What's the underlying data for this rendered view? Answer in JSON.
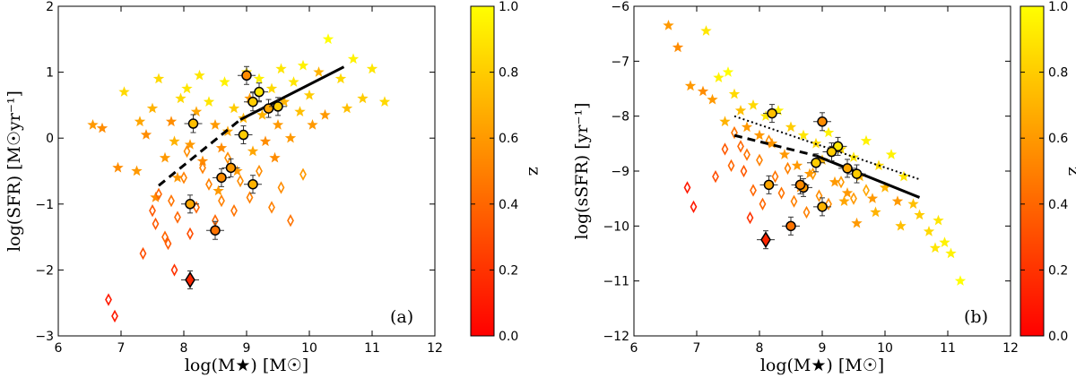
{
  "chart_data": [
    {
      "type": "scatter",
      "panel_label": "(a)",
      "xlabel": "log(M★)  [M☉]",
      "ylabel": "log(SFR)  [M☉yr⁻¹]",
      "xlim": [
        6,
        12
      ],
      "ylim": [
        -3,
        2
      ],
      "xticks": [
        "6",
        "7",
        "8",
        "9",
        "10",
        "11",
        "12"
      ],
      "yticks": [
        "−3",
        "−2",
        "−1",
        "0",
        "1",
        "2"
      ],
      "colorbar": {
        "label": "z",
        "range": [
          0.0,
          1.0
        ],
        "ticks": [
          "0.0",
          "0.2",
          "0.4",
          "0.6",
          "0.8",
          "1.0"
        ]
      },
      "fit_line": {
        "dashed_x": [
          7.6,
          8.9
        ],
        "dashed_y": [
          -0.72,
          0.28
        ],
        "solid_x": [
          8.9,
          10.55
        ],
        "solid_y": [
          0.28,
          1.08
        ]
      },
      "series": [
        {
          "name": "stars",
          "marker": "star",
          "points": [
            [
              6.55,
              0.2,
              0.6
            ],
            [
              6.7,
              0.15,
              0.55
            ],
            [
              7.05,
              0.7,
              0.85
            ],
            [
              7.25,
              -0.5,
              0.6
            ],
            [
              7.4,
              0.05,
              0.55
            ],
            [
              7.5,
              0.45,
              0.7
            ],
            [
              7.6,
              0.9,
              0.85
            ],
            [
              7.7,
              -0.3,
              0.6
            ],
            [
              7.8,
              0.25,
              0.55
            ],
            [
              7.9,
              -0.6,
              0.6
            ],
            [
              7.95,
              0.6,
              0.85
            ],
            [
              8.05,
              0.75,
              0.9
            ],
            [
              8.1,
              -0.1,
              0.6
            ],
            [
              8.2,
              0.4,
              0.65
            ],
            [
              8.3,
              -0.35,
              0.55
            ],
            [
              8.4,
              0.55,
              0.9
            ],
            [
              8.5,
              0.2,
              0.6
            ],
            [
              8.55,
              -0.8,
              0.6
            ],
            [
              8.65,
              0.85,
              0.95
            ],
            [
              8.7,
              0.1,
              0.65
            ],
            [
              8.8,
              0.45,
              0.8
            ],
            [
              8.85,
              -0.5,
              0.6
            ],
            [
              8.95,
              0.3,
              0.7
            ],
            [
              9.0,
              1.0,
              0.9
            ],
            [
              9.05,
              0.6,
              0.6
            ],
            [
              9.1,
              -0.2,
              0.65
            ],
            [
              9.2,
              0.9,
              0.95
            ],
            [
              9.25,
              0.35,
              0.7
            ],
            [
              9.3,
              -0.05,
              0.55
            ],
            [
              9.4,
              0.75,
              0.85
            ],
            [
              9.5,
              0.2,
              0.6
            ],
            [
              9.55,
              1.05,
              0.9
            ],
            [
              9.6,
              0.55,
              0.7
            ],
            [
              9.7,
              0.0,
              0.6
            ],
            [
              9.75,
              0.85,
              0.9
            ],
            [
              9.85,
              0.4,
              0.75
            ],
            [
              9.9,
              1.1,
              0.95
            ],
            [
              10.0,
              0.65,
              0.8
            ],
            [
              10.05,
              0.2,
              0.6
            ],
            [
              10.15,
              1.0,
              0.7
            ],
            [
              10.3,
              1.5,
              1.0
            ],
            [
              10.5,
              0.9,
              0.85
            ],
            [
              10.7,
              1.2,
              0.95
            ],
            [
              10.85,
              0.6,
              0.8
            ],
            [
              11.0,
              1.05,
              0.9
            ],
            [
              11.2,
              0.55,
              0.85
            ],
            [
              10.6,
              0.45,
              0.75
            ],
            [
              9.35,
              0.45,
              0.5
            ],
            [
              8.6,
              -0.15,
              0.55
            ],
            [
              7.55,
              -0.9,
              0.55
            ],
            [
              7.85,
              -0.05,
              0.7
            ],
            [
              8.25,
              0.95,
              0.9
            ],
            [
              9.45,
              -0.3,
              0.55
            ],
            [
              10.25,
              0.35,
              0.6
            ],
            [
              7.3,
              0.25,
              0.65
            ],
            [
              6.95,
              -0.45,
              0.55
            ]
          ]
        },
        {
          "name": "diamonds",
          "marker": "diamond",
          "points": [
            [
              6.8,
              -2.45,
              0.1
            ],
            [
              6.9,
              -2.7,
              0.1
            ],
            [
              7.35,
              -1.75,
              0.3
            ],
            [
              7.5,
              -1.1,
              0.35
            ],
            [
              7.55,
              -1.3,
              0.35
            ],
            [
              7.6,
              -0.85,
              0.4
            ],
            [
              7.7,
              -1.5,
              0.4
            ],
            [
              7.75,
              -1.6,
              0.35
            ],
            [
              7.8,
              -0.95,
              0.45
            ],
            [
              7.85,
              -2.0,
              0.2
            ],
            [
              7.9,
              -1.2,
              0.4
            ],
            [
              8.0,
              -0.6,
              0.5
            ],
            [
              8.05,
              -0.2,
              0.55
            ],
            [
              8.1,
              -1.45,
              0.3
            ],
            [
              8.2,
              -1.05,
              0.4
            ],
            [
              8.3,
              -0.45,
              0.5
            ],
            [
              8.4,
              -0.7,
              0.5
            ],
            [
              8.5,
              -1.25,
              0.4
            ],
            [
              8.6,
              -0.95,
              0.5
            ],
            [
              8.7,
              -0.3,
              0.55
            ],
            [
              8.8,
              -1.1,
              0.45
            ],
            [
              8.9,
              -0.65,
              0.55
            ],
            [
              9.05,
              -0.9,
              0.5
            ],
            [
              9.2,
              -0.5,
              0.55
            ],
            [
              9.4,
              -1.05,
              0.5
            ],
            [
              9.55,
              -0.75,
              0.55
            ],
            [
              9.7,
              -1.25,
              0.45
            ],
            [
              9.9,
              -0.55,
              0.6
            ]
          ]
        },
        {
          "name": "circles",
          "marker": "circle",
          "points": [
            [
              8.15,
              0.22,
              0.75
            ],
            [
              9.0,
              0.95,
              0.55
            ],
            [
              9.2,
              0.7,
              0.9
            ],
            [
              9.1,
              0.55,
              0.8
            ],
            [
              9.35,
              0.45,
              0.65
            ],
            [
              9.5,
              0.48,
              0.8
            ],
            [
              8.95,
              0.05,
              0.8
            ],
            [
              8.75,
              -0.45,
              0.6
            ],
            [
              8.6,
              -0.6,
              0.55
            ],
            [
              9.1,
              -0.7,
              0.7
            ],
            [
              8.1,
              -1.0,
              0.65
            ],
            [
              8.5,
              -1.4,
              0.45
            ]
          ]
        },
        {
          "name": "big-diamond",
          "marker": "diamond",
          "points": [
            [
              8.1,
              -2.15,
              0.15
            ]
          ]
        }
      ]
    },
    {
      "type": "scatter",
      "panel_label": "(b)",
      "xlabel": "log(M★)  [M☉]",
      "ylabel": "log(sSFR)  [yr⁻¹]",
      "xlim": [
        6,
        12
      ],
      "ylim": [
        -12,
        -6
      ],
      "xticks": [
        "6",
        "7",
        "8",
        "9",
        "10",
        "11",
        "12"
      ],
      "yticks": [
        "−12",
        "−11",
        "−10",
        "−9",
        "−8",
        "−7",
        "−6"
      ],
      "colorbar": {
        "label": "z",
        "range": [
          0.0,
          1.0
        ],
        "ticks": [
          "0.0",
          "0.2",
          "0.4",
          "0.6",
          "0.8",
          "1.0"
        ]
      },
      "fit_line": {
        "dashed_x": [
          7.6,
          8.9
        ],
        "dashed_y": [
          -8.35,
          -8.72
        ],
        "solid_x": [
          8.9,
          10.55
        ],
        "solid_y": [
          -8.72,
          -9.48
        ],
        "dotted_x": [
          7.6,
          10.55
        ],
        "dotted_y": [
          -8.0,
          -9.15
        ]
      },
      "series": [
        {
          "name": "stars",
          "marker": "star",
          "points": [
            [
              6.55,
              -6.35,
              0.6
            ],
            [
              6.7,
              -6.75,
              0.55
            ],
            [
              7.15,
              -6.45,
              0.9
            ],
            [
              6.9,
              -7.45,
              0.6
            ],
            [
              7.1,
              -7.55,
              0.55
            ],
            [
              7.35,
              -7.3,
              0.95
            ],
            [
              7.5,
              -7.2,
              1.0
            ],
            [
              7.6,
              -7.6,
              0.85
            ],
            [
              7.7,
              -7.9,
              0.75
            ],
            [
              7.8,
              -8.2,
              0.6
            ],
            [
              7.9,
              -7.8,
              0.85
            ],
            [
              8.0,
              -8.35,
              0.6
            ],
            [
              8.1,
              -8.0,
              0.9
            ],
            [
              8.2,
              -8.5,
              0.6
            ],
            [
              8.3,
              -7.9,
              0.95
            ],
            [
              8.4,
              -8.7,
              0.6
            ],
            [
              8.5,
              -8.2,
              0.8
            ],
            [
              8.6,
              -8.9,
              0.6
            ],
            [
              8.7,
              -8.35,
              0.9
            ],
            [
              8.8,
              -9.05,
              0.6
            ],
            [
              8.9,
              -8.5,
              0.85
            ],
            [
              9.0,
              -8.8,
              0.7
            ],
            [
              9.1,
              -8.3,
              0.95
            ],
            [
              9.2,
              -9.2,
              0.6
            ],
            [
              9.3,
              -8.6,
              0.85
            ],
            [
              9.4,
              -9.4,
              0.6
            ],
            [
              9.5,
              -8.75,
              0.9
            ],
            [
              9.6,
              -9.1,
              0.7
            ],
            [
              9.7,
              -8.45,
              0.95
            ],
            [
              9.8,
              -9.5,
              0.6
            ],
            [
              9.9,
              -8.9,
              0.85
            ],
            [
              10.0,
              -9.3,
              0.7
            ],
            [
              10.1,
              -8.7,
              0.95
            ],
            [
              10.2,
              -9.55,
              0.6
            ],
            [
              10.3,
              -9.1,
              0.9
            ],
            [
              10.45,
              -9.6,
              0.75
            ],
            [
              10.55,
              -9.8,
              0.8
            ],
            [
              10.7,
              -10.1,
              0.85
            ],
            [
              10.85,
              -9.9,
              0.9
            ],
            [
              10.95,
              -10.3,
              0.95
            ],
            [
              11.05,
              -10.5,
              0.95
            ],
            [
              11.2,
              -11.0,
              1.0
            ],
            [
              10.8,
              -10.4,
              0.9
            ],
            [
              9.85,
              -9.75,
              0.7
            ],
            [
              9.35,
              -9.55,
              0.65
            ],
            [
              8.65,
              -9.3,
              0.55
            ],
            [
              10.25,
              -10.0,
              0.75
            ],
            [
              7.45,
              -8.1,
              0.7
            ],
            [
              7.25,
              -7.7,
              0.6
            ],
            [
              9.55,
              -9.95,
              0.6
            ]
          ]
        },
        {
          "name": "diamonds",
          "marker": "diamond",
          "points": [
            [
              6.85,
              -9.3,
              0.1
            ],
            [
              6.95,
              -9.65,
              0.1
            ],
            [
              7.3,
              -9.1,
              0.3
            ],
            [
              7.45,
              -8.6,
              0.35
            ],
            [
              7.55,
              -8.9,
              0.4
            ],
            [
              7.6,
              -8.3,
              0.45
            ],
            [
              7.7,
              -8.55,
              0.4
            ],
            [
              7.75,
              -9.0,
              0.35
            ],
            [
              7.8,
              -8.7,
              0.45
            ],
            [
              7.85,
              -9.85,
              0.2
            ],
            [
              7.9,
              -9.35,
              0.4
            ],
            [
              8.0,
              -8.8,
              0.5
            ],
            [
              8.05,
              -9.6,
              0.4
            ],
            [
              8.15,
              -8.45,
              0.55
            ],
            [
              8.25,
              -9.1,
              0.45
            ],
            [
              8.35,
              -9.4,
              0.45
            ],
            [
              8.45,
              -8.95,
              0.5
            ],
            [
              8.55,
              -9.55,
              0.5
            ],
            [
              8.65,
              -9.25,
              0.55
            ],
            [
              8.75,
              -9.75,
              0.5
            ],
            [
              8.85,
              -9.05,
              0.6
            ],
            [
              8.95,
              -9.45,
              0.55
            ],
            [
              9.1,
              -9.6,
              0.55
            ],
            [
              9.3,
              -9.2,
              0.6
            ],
            [
              9.5,
              -9.5,
              0.6
            ],
            [
              9.7,
              -9.35,
              0.65
            ]
          ]
        },
        {
          "name": "circles",
          "marker": "circle",
          "points": [
            [
              8.2,
              -7.95,
              0.75
            ],
            [
              9.0,
              -8.1,
              0.55
            ],
            [
              9.25,
              -8.55,
              0.9
            ],
            [
              9.15,
              -8.65,
              0.8
            ],
            [
              9.4,
              -8.95,
              0.65
            ],
            [
              9.55,
              -9.05,
              0.8
            ],
            [
              8.9,
              -8.85,
              0.8
            ],
            [
              8.7,
              -9.3,
              0.6
            ],
            [
              8.65,
              -9.25,
              0.55
            ],
            [
              9.0,
              -9.65,
              0.7
            ],
            [
              8.15,
              -9.25,
              0.65
            ],
            [
              8.5,
              -10.0,
              0.45
            ]
          ]
        },
        {
          "name": "big-diamond",
          "marker": "diamond",
          "points": [
            [
              8.1,
              -10.25,
              0.15
            ]
          ]
        }
      ]
    }
  ]
}
